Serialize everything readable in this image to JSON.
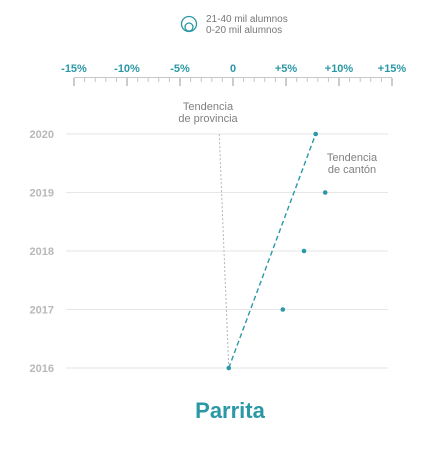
{
  "colors": {
    "accent": "#2b98a5",
    "province_trend": "#b5b5b5",
    "grid": "#e6e6e6",
    "year_label": "#b8b8b8",
    "annotation": "#808080"
  },
  "legend": {
    "icon": "nested-circles-icon",
    "items": [
      "21-40 mil alumnos",
      "0-20 mil alumnos"
    ]
  },
  "chart_data": {
    "type": "scatter",
    "title": "Parrita",
    "x_tick_labels": [
      "-15%",
      "-10%",
      "-5%",
      "0",
      "+5%",
      "+10%",
      "+15%"
    ],
    "xlim": [
      -15,
      15
    ],
    "x_tick_values": [
      -15,
      -10,
      -5,
      0,
      5,
      10,
      15
    ],
    "y_tick_labels": [
      "2020",
      "2019",
      "2018",
      "2017",
      "2016"
    ],
    "grid": true,
    "series": [
      {
        "points": [
          {
            "year": 2016,
            "x": -0.4
          },
          {
            "year": 2017,
            "x": 4.7
          },
          {
            "year": 2018,
            "x": 6.7
          },
          {
            "year": 2019,
            "x": 8.7
          },
          {
            "year": 2020,
            "x": 7.8
          }
        ]
      }
    ],
    "trend_lines": [
      {
        "label": "Tendencia\nde provincia",
        "from": {
          "year": 2016,
          "x": -0.4
        },
        "to": {
          "year": 2020,
          "x": -1.3
        }
      },
      {
        "label": "Tendencia\nde cantón",
        "from": {
          "year": 2016,
          "x": -0.4
        },
        "to": {
          "year": 2020,
          "x": 7.8
        }
      }
    ]
  }
}
